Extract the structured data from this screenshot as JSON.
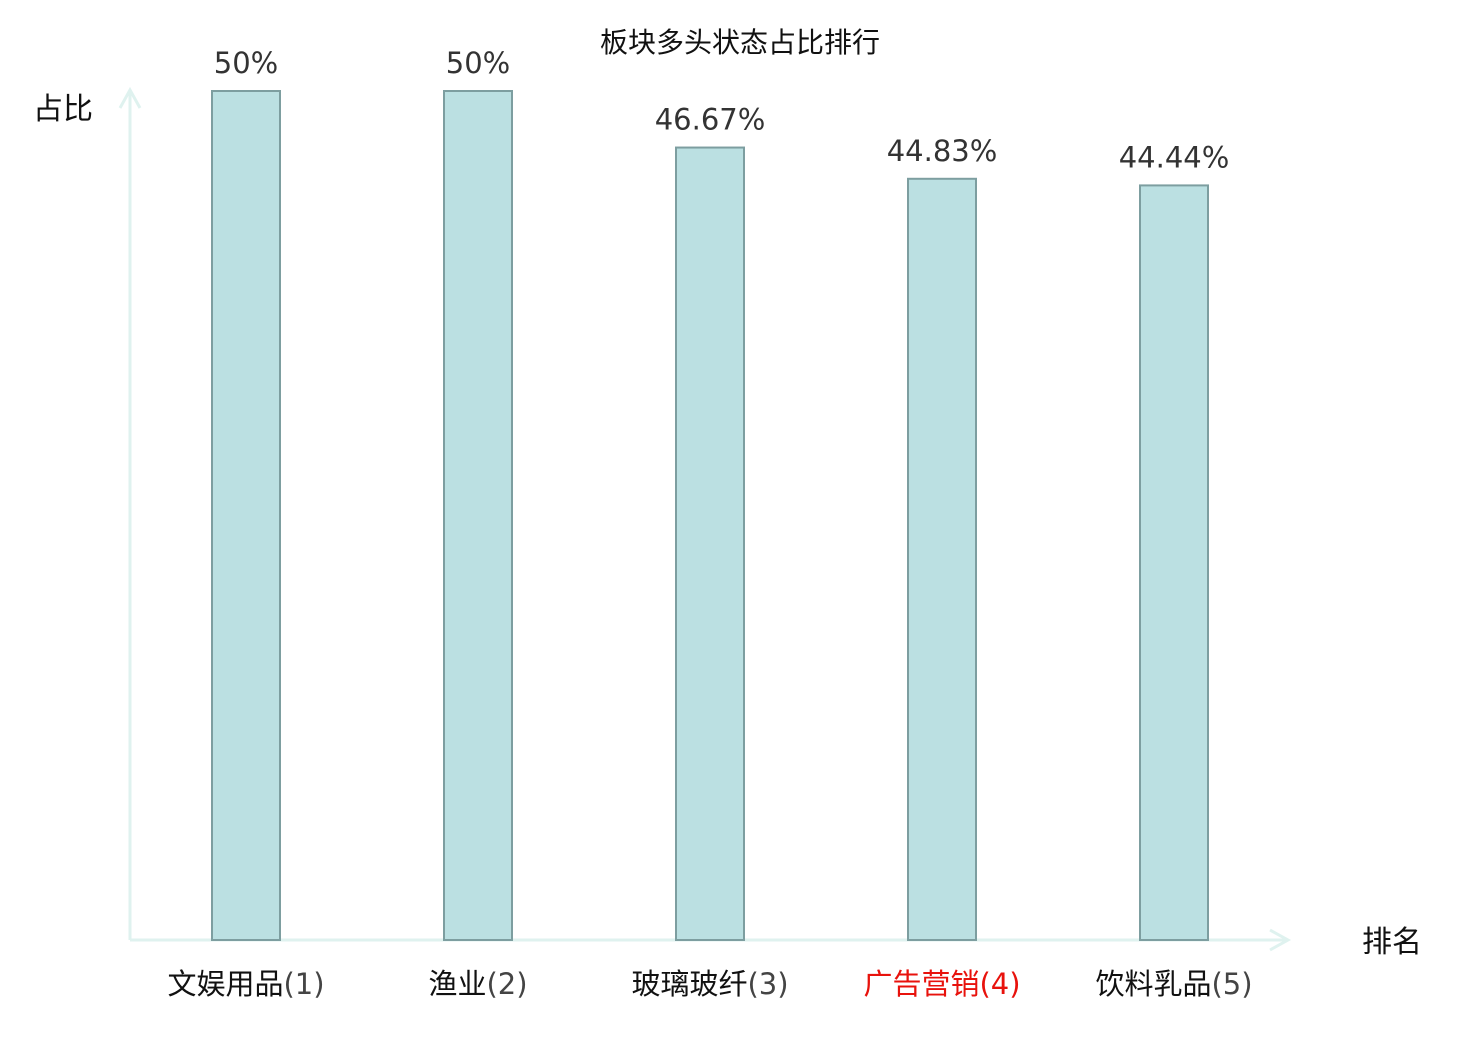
{
  "chart_data": {
    "type": "bar",
    "title": "板块多头状态占比排行",
    "ylabel": "占比",
    "xlabel": "排名",
    "ylim": [
      0,
      50
    ],
    "grid": false,
    "categories": [
      {
        "name": "文娱用品",
        "rank": "(1)",
        "highlight": false
      },
      {
        "name": "渔业",
        "rank": "(2)",
        "highlight": false
      },
      {
        "name": "玻璃玻纤",
        "rank": "(3)",
        "highlight": false
      },
      {
        "name": "广告营销",
        "rank": "(4)",
        "highlight": true
      },
      {
        "name": "饮料乳品",
        "rank": "(5)",
        "highlight": false
      }
    ],
    "values": [
      50,
      50,
      46.67,
      44.83,
      44.44
    ],
    "value_labels": [
      "50%",
      "50%",
      "46.67%",
      "44.83%",
      "44.44%"
    ]
  },
  "colors": {
    "bar_fill": "#bbe0e2",
    "bar_stroke": "#7d9ea0",
    "axis": "#dff2ef",
    "label_normal": "#111111",
    "rank_normal": "#444444",
    "label_highlight": "#e8120c"
  }
}
